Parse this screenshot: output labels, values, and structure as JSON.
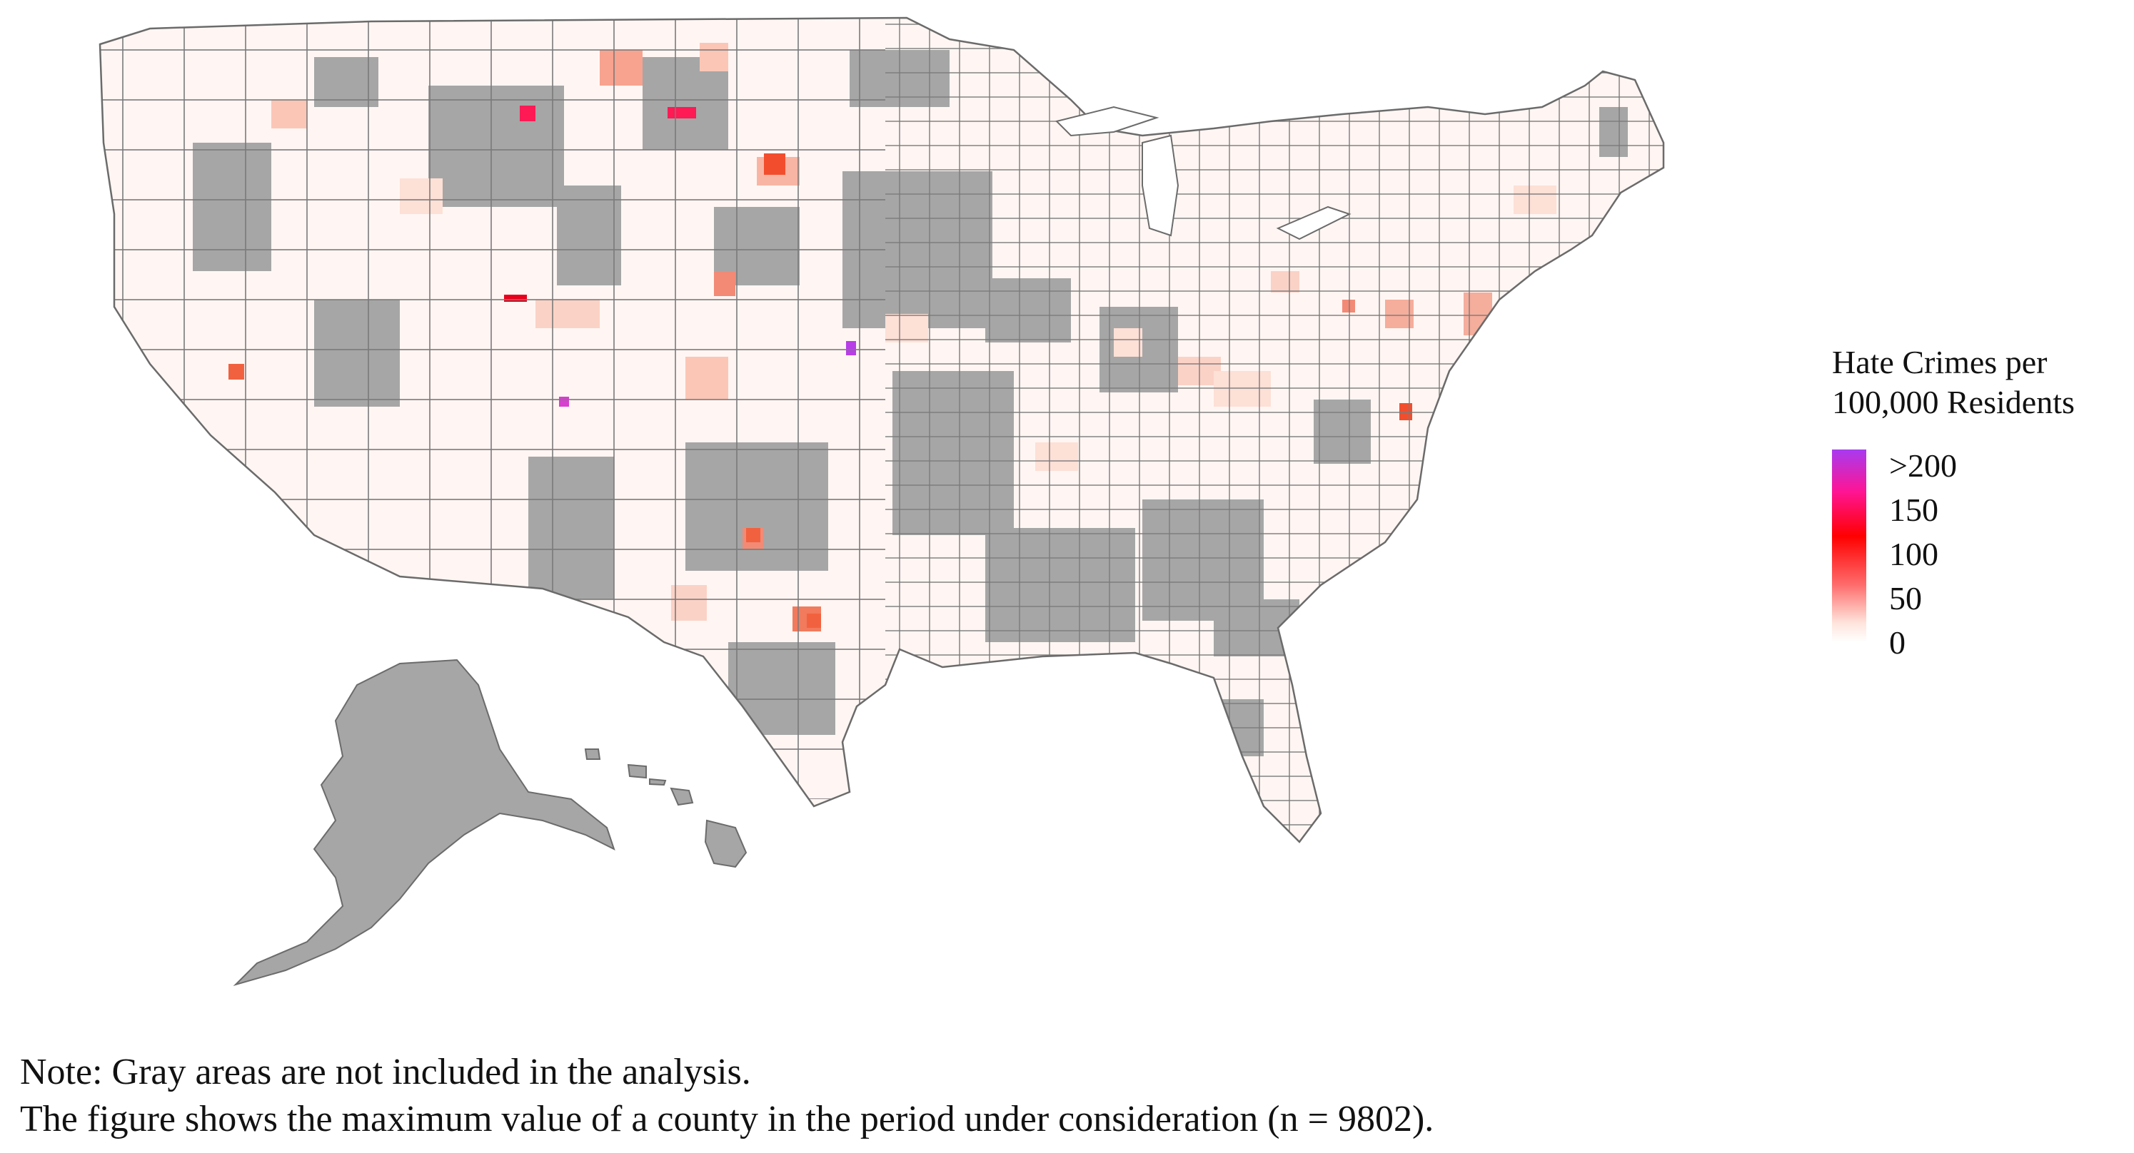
{
  "legend": {
    "title_line1": "Hate Crimes per",
    "title_line2": "100,000 Residents",
    "ticks": [
      ">200",
      "150",
      "100",
      "50",
      "0"
    ],
    "colors": {
      "max": "#a83bf0",
      "high": "#ff1493",
      "mid": "#ff0000",
      "low": "#ff6b6b",
      "min": "#ffffff"
    }
  },
  "map": {
    "excluded_color": "#a6a6a6",
    "border_color": "#6b6b6b",
    "regions": [
      "Contiguous United States",
      "Alaska",
      "Hawaii"
    ]
  },
  "notes": {
    "line1": "Note: Gray areas are not included in the analysis.",
    "line2": "The figure shows the maximum value of a county in the period under consideration (n = 9802)."
  }
}
